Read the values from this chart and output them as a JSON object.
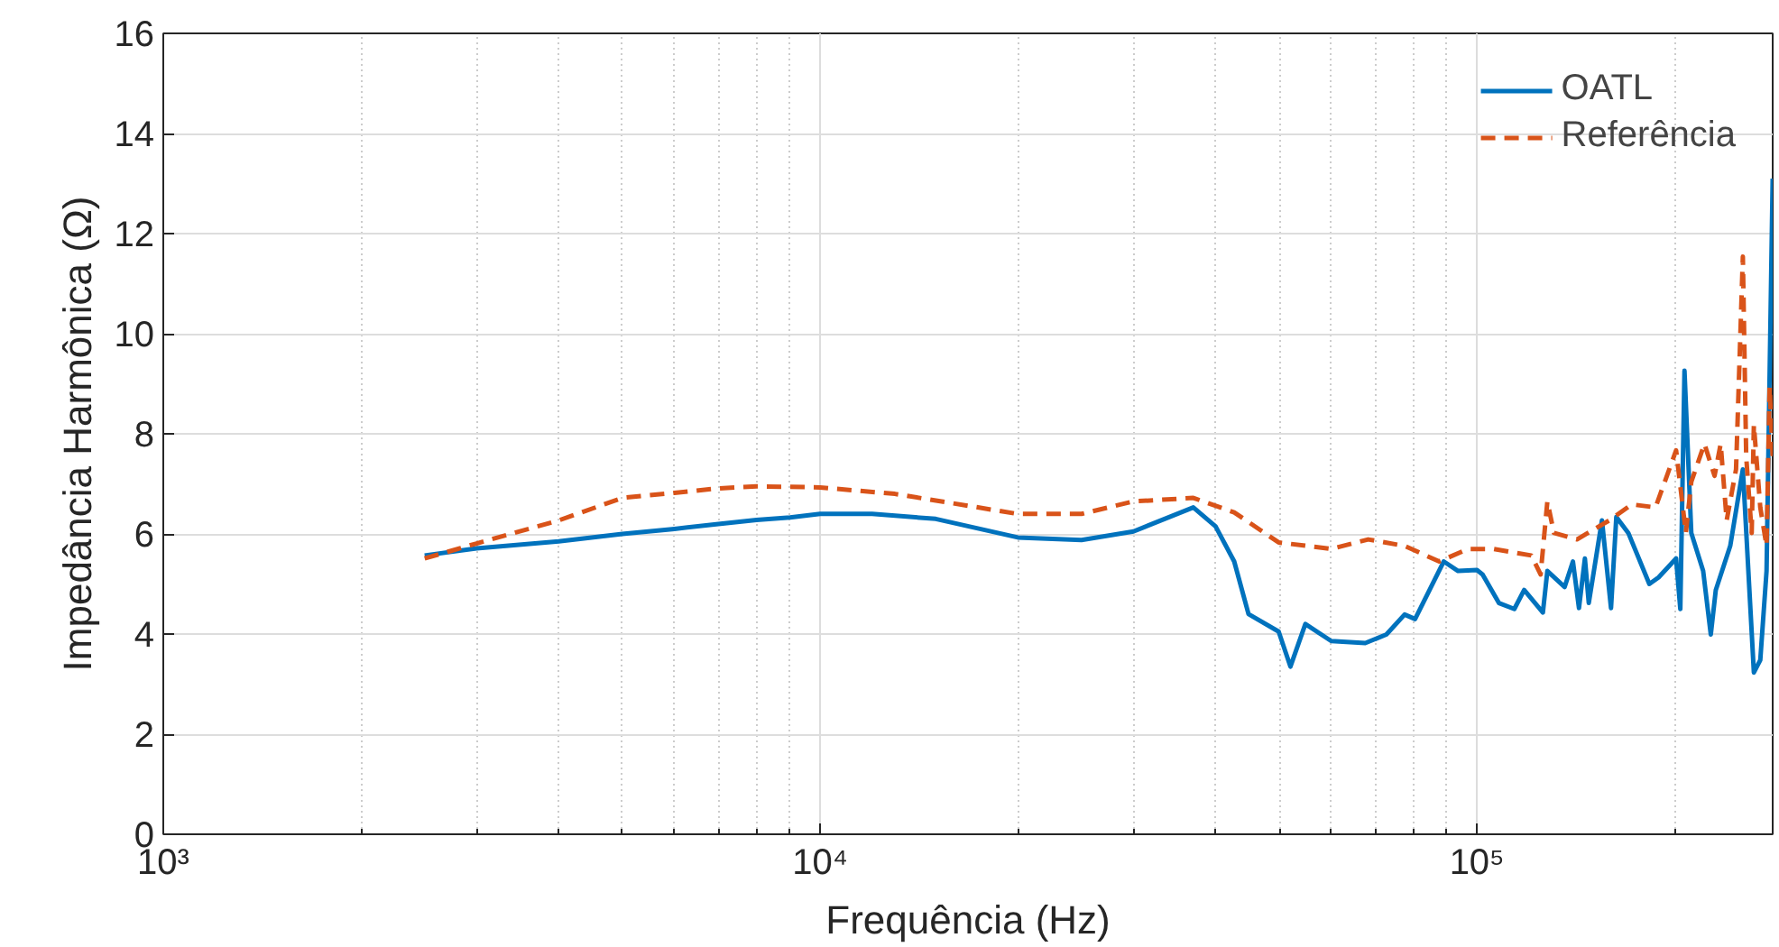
{
  "chart_data": {
    "type": "line",
    "xlabel": "Frequência (Hz)",
    "ylabel": "Impedância Harmônica (Ω)",
    "log": "x",
    "grid": true,
    "legend": "top right",
    "xlim": [
      1000,
      282000
    ],
    "ylim": [
      0,
      16
    ],
    "xticks": [
      {
        "value": 1000,
        "label": "10³"
      },
      {
        "value": 10000,
        "label": "10⁴"
      },
      {
        "value": 100000,
        "label": "10⁵"
      }
    ],
    "yticks": [
      0,
      2,
      4,
      6,
      8,
      10,
      12,
      14,
      16
    ],
    "series": [
      {
        "name": "OATL",
        "color": "#0072bd",
        "line_style": "solid",
        "x": [
          2500,
          3000,
          4000,
          5000,
          6000,
          7000,
          8000,
          9000,
          10000,
          12000,
          15000,
          20000,
          25000,
          30000,
          37000,
          40000,
          42700,
          44900,
          49900,
          52000,
          54800,
          60000,
          67600,
          72800,
          77600,
          80500,
          89000,
          93600,
          100000,
          102000,
          108000,
          114000,
          118000,
          126000,
          128000,
          136000,
          140000,
          143000,
          146000,
          148000,
          155000,
          160000,
          163000,
          170000,
          183000,
          189000,
          201000,
          204000,
          207000,
          212000,
          221000,
          227000,
          231000,
          243000,
          254000,
          264000,
          270000,
          276000,
          282000
        ],
        "values": [
          5.57,
          5.71,
          5.85,
          6.0,
          6.1,
          6.2,
          6.28,
          6.33,
          6.4,
          6.4,
          6.3,
          5.93,
          5.88,
          6.05,
          6.53,
          6.15,
          5.45,
          4.4,
          4.05,
          3.35,
          4.2,
          3.86,
          3.82,
          3.99,
          4.39,
          4.3,
          5.45,
          5.26,
          5.28,
          5.19,
          4.62,
          4.5,
          4.88,
          4.43,
          5.26,
          4.94,
          5.45,
          4.52,
          5.51,
          4.62,
          6.27,
          4.52,
          6.34,
          6.02,
          5.0,
          5.13,
          5.51,
          4.5,
          9.26,
          6.02,
          5.26,
          3.99,
          4.88,
          5.76,
          7.29,
          3.23,
          3.48,
          5.26,
          13.1
        ]
      },
      {
        "name": "Referência",
        "color": "#d95319",
        "line_style": "dashed",
        "x": [
          2500,
          3000,
          4000,
          5000,
          6000,
          7000,
          8000,
          10000,
          13000,
          20000,
          25000,
          30000,
          37000,
          42700,
          49900,
          60000,
          68300,
          77600,
          87600,
          97000,
          106000,
          121000,
          125000,
          128000,
          131000,
          142000,
          159000,
          172000,
          187000,
          201000,
          208000,
          212000,
          222000,
          230000,
          235000,
          240000,
          248000,
          254000,
          257000,
          262000,
          264000,
          270000,
          276000,
          279000,
          282000
        ],
        "values": [
          5.51,
          5.81,
          6.27,
          6.72,
          6.82,
          6.91,
          6.95,
          6.93,
          6.8,
          6.4,
          6.4,
          6.65,
          6.72,
          6.43,
          5.83,
          5.7,
          5.89,
          5.76,
          5.45,
          5.7,
          5.7,
          5.57,
          5.19,
          6.65,
          6.02,
          5.89,
          6.27,
          6.59,
          6.53,
          7.67,
          6.02,
          7.04,
          7.8,
          7.16,
          7.8,
          6.27,
          7.29,
          11.54,
          7.54,
          6.02,
          8.18,
          6.53,
          5.76,
          8.94,
          7.54
        ]
      }
    ]
  }
}
